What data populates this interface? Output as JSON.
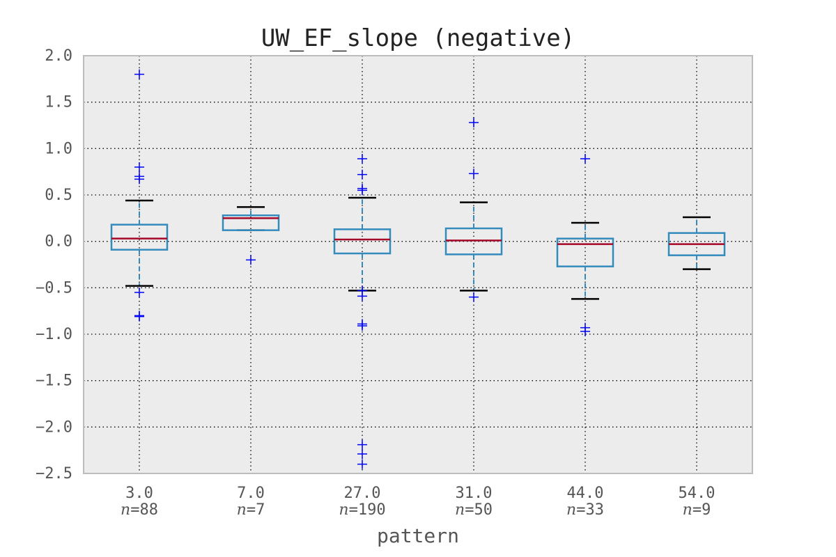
{
  "chart_data": {
    "type": "box",
    "title": "UW_EF_slope (negative)",
    "xlabel": "pattern",
    "ylabel": "",
    "ylim": [
      -2.5,
      2.0
    ],
    "yticks": [
      2.0,
      1.5,
      1.0,
      0.5,
      0.0,
      -0.5,
      -1.0,
      -1.5,
      -2.0,
      -2.5
    ],
    "ytick_labels": [
      "2.0",
      "1.5",
      "1.0",
      "0.5",
      "0.0",
      "−0.5",
      "−1.0",
      "−1.5",
      "−2.0",
      "−2.5"
    ],
    "grid": true,
    "categories": [
      "3.0",
      "7.0",
      "27.0",
      "31.0",
      "44.0",
      "54.0"
    ],
    "n_labels": [
      "=88",
      "=7",
      "=190",
      "=50",
      "=33",
      "=9"
    ],
    "n_symbol": "n",
    "boxes": [
      {
        "label": "3.0",
        "n": 88,
        "whislo": -0.48,
        "q1": -0.09,
        "median": 0.03,
        "q3": 0.18,
        "whishi": 0.44,
        "fliers": [
          1.8,
          0.8,
          0.7,
          0.67,
          -0.55,
          -0.8,
          -0.81
        ]
      },
      {
        "label": "7.0",
        "n": 7,
        "whislo": 0.12,
        "q1": 0.12,
        "median": 0.25,
        "q3": 0.28,
        "whishi": 0.37,
        "fliers": [
          -0.2
        ]
      },
      {
        "label": "27.0",
        "n": 190,
        "whislo": -0.53,
        "q1": -0.13,
        "median": 0.02,
        "q3": 0.13,
        "whishi": 0.47,
        "fliers": [
          0.89,
          0.72,
          0.57,
          0.55,
          -0.59,
          -0.53,
          -0.89,
          -0.91,
          -2.19,
          -2.29,
          -2.4
        ]
      },
      {
        "label": "31.0",
        "n": 50,
        "whislo": -0.53,
        "q1": -0.14,
        "median": 0.01,
        "q3": 0.14,
        "whishi": 0.42,
        "fliers": [
          1.28,
          0.73,
          -0.6
        ]
      },
      {
        "label": "44.0",
        "n": 33,
        "whislo": -0.62,
        "q1": -0.27,
        "median": -0.03,
        "q3": 0.03,
        "whishi": 0.2,
        "fliers": [
          0.89,
          -0.93,
          -0.97
        ]
      },
      {
        "label": "54.0",
        "n": 9,
        "whislo": -0.3,
        "q1": -0.15,
        "median": -0.03,
        "q3": 0.09,
        "whishi": 0.26,
        "fliers": []
      }
    ],
    "colors": {
      "box": "#348abd",
      "median": "#a60628",
      "whisker_cap": "#000000",
      "flier": "#0000ff",
      "plot_bg": "#ececec",
      "frame": "#bcbcbc",
      "grid": "#000000"
    }
  }
}
